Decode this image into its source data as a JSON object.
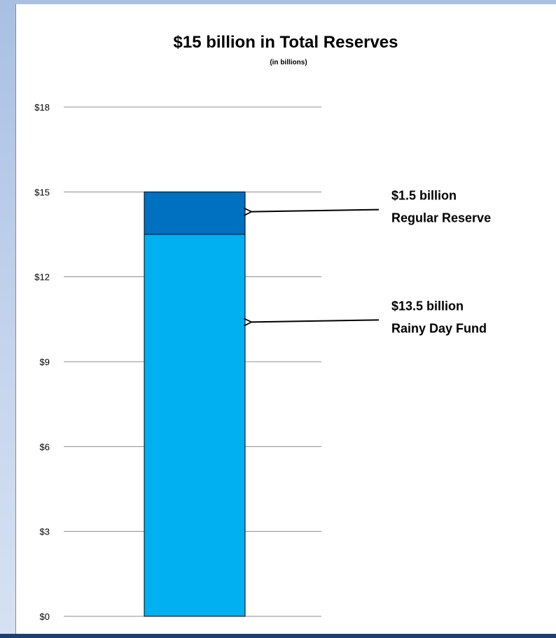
{
  "chart_data": {
    "type": "bar",
    "title": "$15 billion in Total Reserves",
    "subtitle": "(in billions)",
    "stacked": true,
    "categories": [
      ""
    ],
    "ylim": [
      0,
      18
    ],
    "yticks": [
      0,
      3,
      6,
      9,
      12,
      15,
      18
    ],
    "ytick_labels": [
      "$0",
      "$3",
      "$6",
      "$9",
      "$12",
      "$15",
      "$18"
    ],
    "grid": true,
    "legend": false,
    "series": [
      {
        "name": "Rainy Day Fund",
        "values": [
          13.5
        ],
        "color": "#00b0f0"
      },
      {
        "name": "Regular Reserve",
        "values": [
          1.5
        ],
        "color": "#0070c0"
      }
    ],
    "annotations": [
      {
        "line1": "$1.5 billion",
        "line2": "Regular Reserve",
        "series": "Regular Reserve",
        "y": 14.3
      },
      {
        "line1": "$13.5 billion",
        "line2": "Rainy Day Fund",
        "series": "Rainy Day Fund",
        "y": 10.4
      }
    ]
  }
}
